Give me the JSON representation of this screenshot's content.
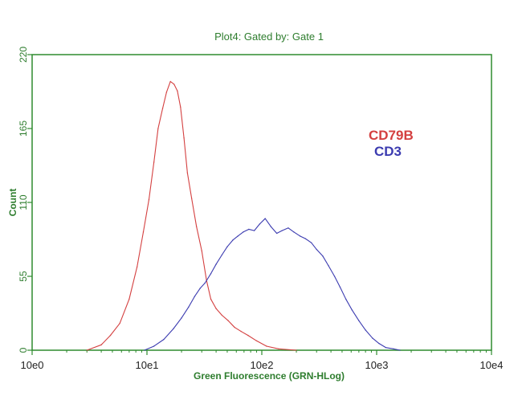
{
  "chart_data": {
    "type": "line",
    "title": "Plot4:  Gated by: Gate 1",
    "xlabel": "Green Fluorescence (GRN-HLog)",
    "ylabel": "Count",
    "xscale": "log",
    "xlim": [
      1,
      10000
    ],
    "ylim": [
      0,
      220
    ],
    "xticks": [
      {
        "value": 1,
        "label": "10e0"
      },
      {
        "value": 10,
        "label": "10e1"
      },
      {
        "value": 100,
        "label": "10e2"
      },
      {
        "value": 1000,
        "label": "10e3"
      },
      {
        "value": 10000,
        "label": "10e4"
      }
    ],
    "yticks": [
      {
        "value": 0,
        "label": "0"
      },
      {
        "value": 55,
        "label": "55"
      },
      {
        "value": 110,
        "label": "110"
      },
      {
        "value": 165,
        "label": "165"
      },
      {
        "value": 220,
        "label": "220"
      }
    ],
    "grid": false,
    "legend_position": "right",
    "colors": {
      "axis": "#2e8b2e",
      "text": "#2e7d2e",
      "cd79b": "#d44040",
      "cd3": "#3b3bb0"
    },
    "series": [
      {
        "name": "CD79B",
        "color": "#d44040",
        "x": [
          3,
          4,
          4.8,
          5.8,
          7,
          8.2,
          9.3,
          10.4,
          11.5,
          12.5,
          13.7,
          14.8,
          16,
          17.2,
          18.4,
          19.6,
          21,
          22.5,
          24.5,
          27,
          30,
          33,
          36,
          40,
          45,
          51,
          58,
          66,
          76,
          90,
          110,
          140,
          200
        ],
        "y": [
          0,
          4,
          11,
          20,
          38,
          62,
          88,
          112,
          140,
          165,
          180,
          192,
          200,
          198,
          193,
          181,
          158,
          132,
          113,
          92,
          74,
          52,
          38,
          31,
          26,
          22,
          17,
          14,
          11,
          7,
          3,
          1,
          0
        ]
      },
      {
        "name": "CD3",
        "color": "#3b3bb0",
        "x": [
          9.5,
          11.5,
          14,
          17,
          20,
          23,
          26,
          29,
          32,
          36,
          40,
          45,
          50,
          56,
          62,
          69,
          77,
          86,
          96,
          107,
          120,
          135,
          150,
          170,
          190,
          215,
          240,
          270,
          300,
          340,
          380,
          430,
          480,
          540,
          610,
          700,
          800,
          920,
          1050,
          1200,
          1400,
          1600
        ],
        "y": [
          0,
          3,
          8,
          16,
          24,
          32,
          40,
          46,
          50,
          57,
          64,
          71,
          77,
          82,
          85,
          88,
          90,
          89,
          94,
          98,
          92,
          87,
          89,
          91,
          88,
          85,
          83,
          80,
          75,
          70,
          63,
          55,
          47,
          38,
          30,
          22,
          15,
          9,
          5,
          2,
          1,
          0
        ]
      }
    ]
  }
}
